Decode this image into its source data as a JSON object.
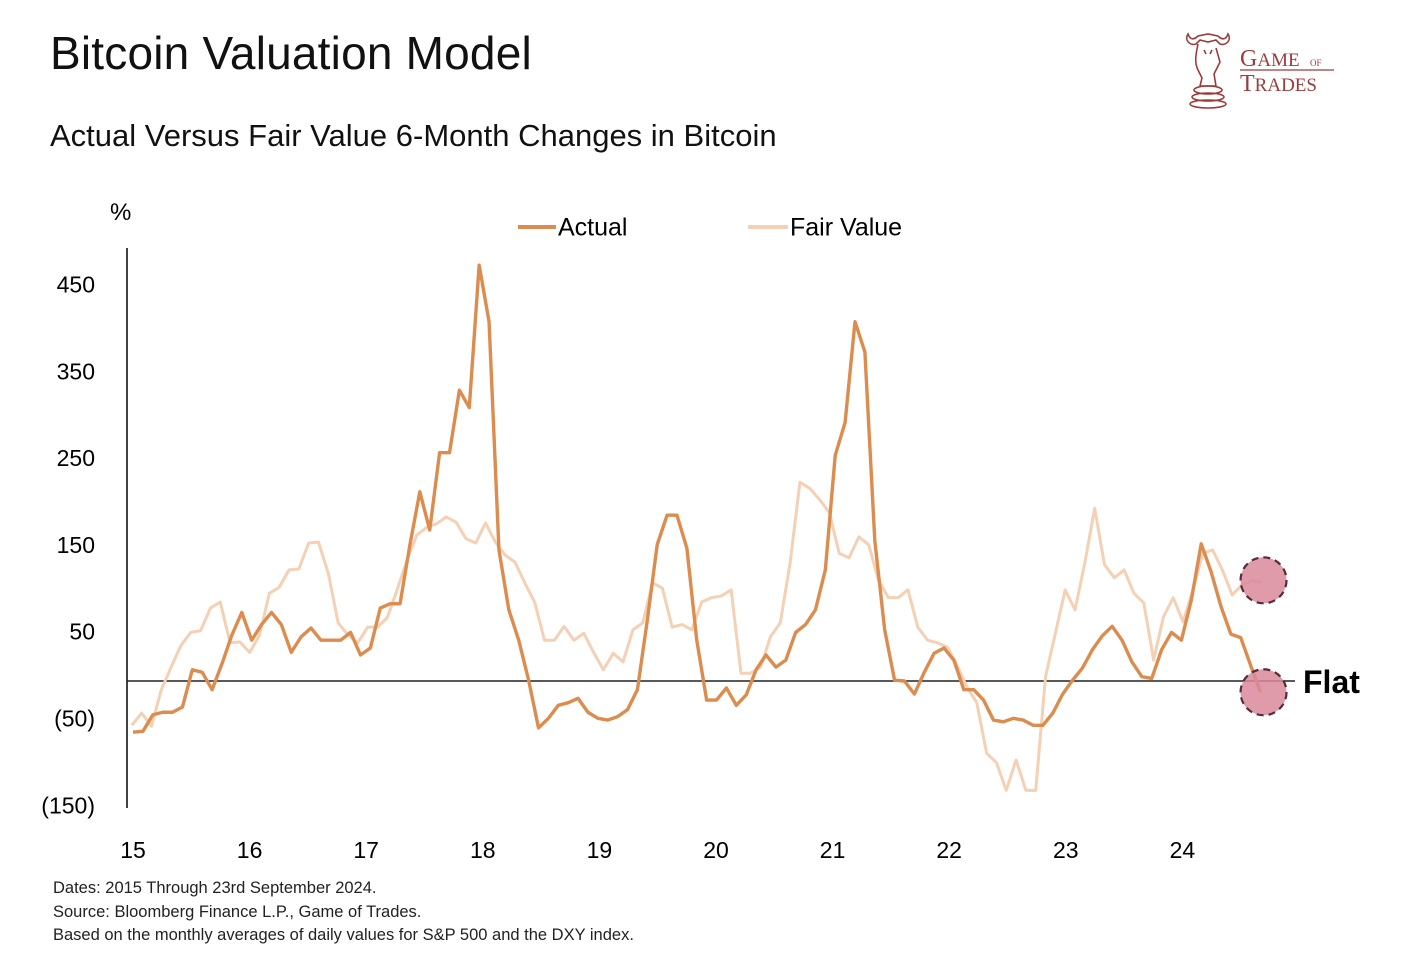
{
  "header": {
    "title": "Bitcoin Valuation Model",
    "subtitle": "Actual Versus Fair Value 6-Month Changes in Bitcoin"
  },
  "logo": {
    "line1": "GAME",
    "of": "OF",
    "line2": "TRADES",
    "color": "#9b3b3b"
  },
  "footnotes": [
    "Dates: 2015 Through 23rd September 2024.",
    "Source: Bloomberg Finance L.P., Game of Trades.",
    "Based on the monthly averages of daily values for S&P 500 and the DXY index."
  ],
  "chart_data": {
    "type": "line",
    "ylabel": "%",
    "ylim": [
      -160,
      490
    ],
    "xlim": [
      15,
      24.95
    ],
    "y_ticks": [
      {
        "value": 450,
        "label": "450"
      },
      {
        "value": 350,
        "label": "350"
      },
      {
        "value": 250,
        "label": "250"
      },
      {
        "value": 150,
        "label": "150"
      },
      {
        "value": 50,
        "label": "50"
      },
      {
        "value": -50,
        "label": "(50)"
      },
      {
        "value": -150,
        "label": "(150)"
      }
    ],
    "x_ticks": [
      {
        "value": 15,
        "label": "15"
      },
      {
        "value": 16,
        "label": "16"
      },
      {
        "value": 17,
        "label": "17"
      },
      {
        "value": 18,
        "label": "18"
      },
      {
        "value": 19,
        "label": "19"
      },
      {
        "value": 20,
        "label": "20"
      },
      {
        "value": 21,
        "label": "21"
      },
      {
        "value": 22,
        "label": "22"
      },
      {
        "value": 23,
        "label": "23"
      },
      {
        "value": 24,
        "label": "24"
      }
    ],
    "reference_line": {
      "value": 0,
      "label": "Flat"
    },
    "legend": {
      "position": "top-center"
    },
    "series": [
      {
        "name": "Actual",
        "color": "#db8c4e",
        "x_start": 15.0,
        "x_end": 24.67,
        "values": [
          -59,
          -58,
          -39,
          -36,
          -36,
          -30,
          13,
          10,
          -10,
          20,
          53,
          79,
          47,
          65,
          79,
          65,
          33,
          51,
          61,
          47,
          47,
          47,
          56,
          30,
          38,
          84,
          89,
          89,
          157,
          218,
          174,
          263,
          263,
          335,
          315,
          479,
          414,
          151,
          82,
          47,
          1,
          -54,
          -43,
          -28,
          -25,
          -20,
          -36,
          -43,
          -45,
          -41,
          -33,
          -10,
          70,
          157,
          191,
          191,
          153,
          47,
          -22,
          -22,
          -8,
          -28,
          -16,
          13,
          30,
          16,
          24,
          56,
          65,
          82,
          128,
          260,
          298,
          414,
          379,
          162,
          59,
          1,
          0,
          -15,
          10,
          32,
          38,
          24,
          -10,
          -10,
          -22,
          -45,
          -47,
          -43,
          -45,
          -51,
          -51,
          -37,
          -15,
          1,
          15,
          36,
          52,
          63,
          47,
          22,
          5,
          3,
          36,
          56,
          47,
          93,
          158,
          126,
          86,
          54,
          50,
          18,
          -13
        ]
      },
      {
        "name": "Fair Value",
        "color": "#f4d0b4",
        "x_start": 14.99,
        "x_end": 24.68,
        "values": [
          -51,
          -37,
          -52,
          -10,
          16,
          41,
          56,
          58,
          84,
          91,
          44,
          45,
          33,
          53,
          101,
          108,
          128,
          129,
          159,
          160,
          124,
          67,
          53,
          44,
          62,
          62,
          73,
          105,
          139,
          168,
          177,
          181,
          189,
          183,
          164,
          159,
          182,
          160,
          145,
          137,
          113,
          91,
          47,
          47,
          63,
          47,
          55,
          33,
          13,
          32,
          22,
          59,
          67,
          113,
          107,
          62,
          65,
          59,
          91,
          96,
          98,
          105,
          9,
          9,
          16,
          51,
          67,
          136,
          229,
          222,
          209,
          194,
          147,
          142,
          166,
          157,
          116,
          96,
          96,
          105,
          62,
          47,
          44,
          39,
          18,
          -7,
          -25,
          -83,
          -94,
          -126,
          -91,
          -126,
          -126,
          5,
          55,
          105,
          82,
          136,
          199,
          134,
          119,
          128,
          101,
          90,
          24,
          74,
          96,
          68,
          105,
          147,
          151,
          128,
          99,
          111,
          116,
          114
        ]
      }
    ],
    "highlights": [
      {
        "series": "Fair Value",
        "x": 24.67,
        "value": 116,
        "color": "#d98a9a"
      },
      {
        "series": "Actual",
        "x": 24.67,
        "value": -13,
        "color": "#d98a9a"
      }
    ]
  }
}
